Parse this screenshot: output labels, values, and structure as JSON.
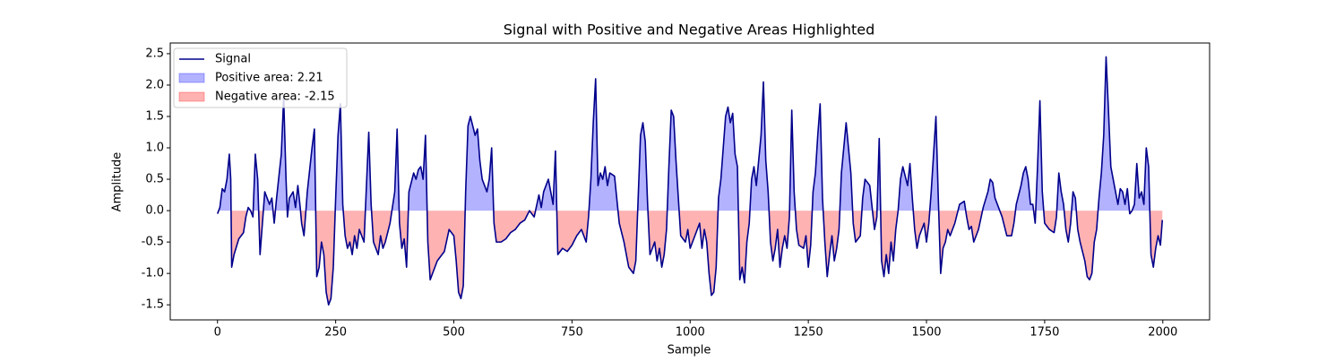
{
  "chart_data": {
    "type": "line-area",
    "title": "Signal with Positive and Negative Areas Highlighted",
    "xlabel": "Sample",
    "ylabel": "Amplitude",
    "x": [
      0,
      5,
      10,
      15,
      20,
      25,
      28,
      30,
      35,
      45,
      55,
      60,
      65,
      70,
      75,
      80,
      85,
      90,
      100,
      110,
      115,
      120,
      125,
      135,
      140,
      145,
      148,
      152,
      160,
      165,
      170,
      175,
      178,
      183,
      190,
      200,
      205,
      210,
      215,
      220,
      225,
      230,
      235,
      240,
      245,
      250,
      255,
      260,
      265,
      270,
      275,
      280,
      285,
      290,
      295,
      300,
      310,
      320,
      325,
      330,
      340,
      345,
      350,
      355,
      365,
      375,
      380,
      385,
      390,
      395,
      400,
      405,
      415,
      420,
      425,
      430,
      435,
      440,
      445,
      450,
      455,
      465,
      475,
      480,
      490,
      500,
      505,
      510,
      515,
      520,
      525,
      530,
      535,
      545,
      550,
      555,
      560,
      565,
      570,
      575,
      580,
      585,
      590,
      600,
      610,
      620,
      630,
      640,
      650,
      660,
      670,
      680,
      685,
      690,
      700,
      705,
      710,
      715,
      720,
      730,
      740,
      750,
      760,
      770,
      780,
      785,
      790,
      795,
      800,
      805,
      810,
      815,
      820,
      825,
      830,
      840,
      850,
      860,
      870,
      880,
      885,
      890,
      895,
      900,
      905,
      910,
      915,
      920,
      925,
      930,
      935,
      940,
      945,
      950,
      955,
      960,
      965,
      970,
      975,
      980,
      990,
      995,
      1000,
      1010,
      1020,
      1025,
      1030,
      1035,
      1040,
      1045,
      1050,
      1055,
      1060,
      1065,
      1070,
      1075,
      1080,
      1085,
      1090,
      1095,
      1100,
      1105,
      1110,
      1115,
      1120,
      1125,
      1130,
      1135,
      1140,
      1150,
      1155,
      1160,
      1165,
      1170,
      1175,
      1180,
      1185,
      1190,
      1195,
      1200,
      1205,
      1210,
      1215,
      1220,
      1225,
      1230,
      1240,
      1245,
      1250,
      1255,
      1260,
      1265,
      1270,
      1275,
      1280,
      1285,
      1290,
      1295,
      1300,
      1305,
      1310,
      1315,
      1320,
      1325,
      1330,
      1335,
      1340,
      1345,
      1350,
      1360,
      1365,
      1370,
      1380,
      1385,
      1390,
      1395,
      1400,
      1405,
      1410,
      1415,
      1420,
      1425,
      1430,
      1435,
      1440,
      1445,
      1450,
      1455,
      1460,
      1465,
      1470,
      1475,
      1480,
      1485,
      1490,
      1495,
      1500,
      1505,
      1510,
      1520,
      1525,
      1530,
      1535,
      1540,
      1545,
      1550,
      1560,
      1570,
      1580,
      1585,
      1590,
      1595,
      1600,
      1610,
      1620,
      1630,
      1635,
      1640,
      1645,
      1650,
      1660,
      1670,
      1680,
      1685,
      1690,
      1700,
      1705,
      1710,
      1715,
      1720,
      1725,
      1730,
      1735,
      1740,
      1745,
      1750,
      1760,
      1770,
      1775,
      1780,
      1785,
      1790,
      1795,
      1800,
      1805,
      1810,
      1815,
      1820,
      1825,
      1835,
      1840,
      1845,
      1850,
      1855,
      1860,
      1865,
      1870,
      1875,
      1880,
      1885,
      1890,
      1895,
      1900,
      1905,
      1910,
      1915,
      1920,
      1925,
      1930,
      1935,
      1940,
      1945,
      1950,
      1955,
      1960,
      1965,
      1970,
      1975,
      1980,
      1985,
      1990,
      1995,
      1999
    ],
    "series": [
      {
        "name": "Signal",
        "color": "#00008b",
        "values": [
          -0.05,
          0.05,
          0.35,
          0.3,
          0.5,
          0.9,
          0.5,
          -0.9,
          -0.7,
          -0.45,
          -0.35,
          -0.1,
          0.05,
          0.0,
          -0.1,
          0.9,
          0.5,
          -0.7,
          0.3,
          0.1,
          0.2,
          -0.2,
          0.2,
          0.9,
          1.8,
          0.5,
          -0.1,
          0.2,
          0.3,
          0.05,
          0.4,
          0.05,
          -0.2,
          -0.4,
          0.3,
          1.0,
          1.3,
          -1.05,
          -0.9,
          -0.5,
          -0.7,
          -1.3,
          -1.5,
          -1.4,
          -0.9,
          0.2,
          1.2,
          1.7,
          0.1,
          -0.4,
          -0.6,
          -0.5,
          -0.7,
          -0.4,
          -0.6,
          -0.3,
          -0.5,
          1.25,
          0.1,
          -0.5,
          -0.7,
          -0.4,
          -0.6,
          -0.5,
          -0.2,
          0.3,
          1.3,
          -0.2,
          -0.6,
          -0.45,
          -0.9,
          0.3,
          0.6,
          0.5,
          0.65,
          0.7,
          0.5,
          1.2,
          -0.5,
          -1.1,
          -1.0,
          -0.8,
          -0.7,
          -0.65,
          -0.3,
          -0.4,
          -0.8,
          -1.3,
          -1.4,
          -1.2,
          0.3,
          1.35,
          1.5,
          1.2,
          1.3,
          0.8,
          0.5,
          0.4,
          0.3,
          0.5,
          1.0,
          -0.2,
          -0.5,
          -0.5,
          -0.45,
          -0.35,
          -0.3,
          -0.2,
          -0.15,
          0.0,
          -0.1,
          0.25,
          0.05,
          0.3,
          0.5,
          0.3,
          0.1,
          0.95,
          -0.7,
          -0.6,
          -0.65,
          -0.55,
          -0.4,
          -0.3,
          -0.5,
          -0.1,
          0.5,
          1.4,
          2.1,
          0.4,
          0.6,
          0.5,
          0.7,
          0.4,
          0.6,
          0.55,
          -0.2,
          -0.5,
          -0.9,
          -1.0,
          -0.8,
          0.2,
          1.2,
          1.4,
          1.1,
          0.1,
          -0.7,
          -0.6,
          -0.5,
          -0.8,
          -0.6,
          -0.9,
          -0.7,
          -0.3,
          0.7,
          1.6,
          1.5,
          0.8,
          0.2,
          -0.4,
          -0.5,
          -0.3,
          -0.6,
          -0.4,
          -0.2,
          -0.6,
          -0.3,
          -0.5,
          -1.0,
          -1.35,
          -1.3,
          -0.9,
          0.2,
          0.5,
          1.0,
          1.5,
          1.65,
          1.4,
          1.55,
          0.9,
          0.7,
          -1.1,
          -0.9,
          -1.15,
          -0.5,
          -0.2,
          0.5,
          0.7,
          0.4,
          1.2,
          2.05,
          0.8,
          0.3,
          -0.5,
          -0.8,
          -0.6,
          -0.3,
          -0.9,
          -0.6,
          -0.4,
          -0.6,
          -0.1,
          1.6,
          0.3,
          -0.3,
          -0.55,
          -0.6,
          -0.4,
          -0.9,
          -0.55,
          0.3,
          0.6,
          1.2,
          1.7,
          0.2,
          -0.5,
          -1.05,
          -0.7,
          -0.4,
          -0.8,
          -0.6,
          -0.3,
          0.6,
          1.0,
          1.4,
          1.0,
          0.6,
          -0.2,
          -0.5,
          -0.4,
          0.2,
          0.5,
          0.4,
          0.05,
          -0.3,
          -0.1,
          1.15,
          -0.8,
          -1.05,
          -0.7,
          -1.0,
          -0.5,
          -0.8,
          -0.3,
          0.0,
          0.5,
          0.7,
          0.55,
          0.4,
          0.75,
          0.2,
          -0.3,
          -0.6,
          -0.4,
          -0.3,
          -0.2,
          -0.5,
          -0.2,
          0.3,
          1.5,
          0.2,
          -1.0,
          -0.6,
          -0.5,
          -0.3,
          -0.4,
          -0.2,
          0.1,
          0.15,
          -0.1,
          -0.3,
          -0.25,
          -0.5,
          -0.3,
          0.05,
          0.3,
          0.5,
          0.45,
          0.2,
          0.1,
          -0.1,
          -0.4,
          -0.4,
          -0.2,
          0.1,
          0.4,
          0.6,
          0.7,
          0.5,
          0.1,
          0.1,
          -0.2,
          0.7,
          1.75,
          0.3,
          -0.2,
          -0.3,
          -0.35,
          -0.1,
          0.6,
          0.3,
          0.1,
          -0.3,
          -0.5,
          -0.2,
          0.3,
          0.2,
          -0.3,
          -0.5,
          -0.8,
          -1.05,
          -1.1,
          -1.0,
          -0.5,
          -0.3,
          0.2,
          0.6,
          1.2,
          2.45,
          1.6,
          0.7,
          0.5,
          0.3,
          0.1,
          0.35,
          0.3,
          0.1,
          0.35,
          -0.05,
          0.0,
          0.1,
          0.75,
          0.2,
          0.3,
          0.1,
          1.0,
          0.7,
          -0.7,
          -0.9,
          -0.6,
          -0.4,
          -0.55,
          -0.15
        ]
      }
    ],
    "fills": [
      {
        "name": "Positive area: 2.21",
        "color": "#0000ff",
        "side": "positive"
      },
      {
        "name": "Negative area: -2.15",
        "color": "#ff0000",
        "side": "negative"
      }
    ],
    "xlim": [
      -100,
      2099
    ],
    "ylim": [
      -1.74,
      2.67
    ],
    "xticks": [
      0,
      250,
      500,
      750,
      1000,
      1250,
      1500,
      1750,
      2000
    ],
    "yticks": [
      -1.5,
      {
        "value": -1.0,
        "label": "-1.0"
      },
      -0.5,
      {
        "value": 0.0,
        "label": "0.0"
      },
      0.5,
      {
        "value": 1.0,
        "label": "1.0"
      },
      1.5,
      {
        "value": 2.0,
        "label": "2.0"
      },
      2.5
    ],
    "legend": "upper left"
  }
}
